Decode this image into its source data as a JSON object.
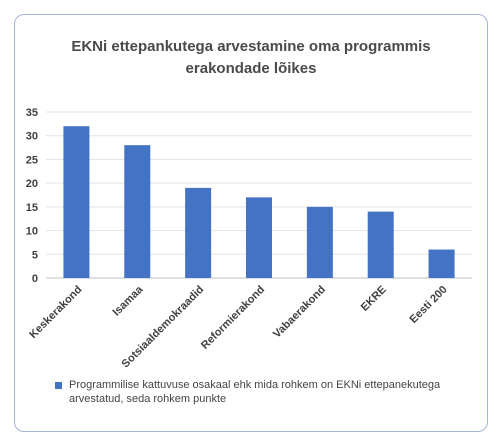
{
  "chart_data": {
    "type": "bar",
    "title_lines": [
      "EKNi ettepankutega arvestamine oma programmis",
      "erakondade lõikes"
    ],
    "categories": [
      "Keskerakond",
      "Isamaa",
      "Sotsiaaldemokraadid",
      "Reformierakond",
      "Vabaerakond",
      "EKRE",
      "Eesti 200"
    ],
    "series": [
      {
        "name": "Programmilise kattuvuse osakaal ehk mida rohkem on EKNi ettepanekutega arvestatud, seda rohkem punkte",
        "values": [
          32,
          28,
          19,
          17,
          15,
          14,
          6
        ],
        "color": "#4472c4"
      }
    ],
    "ylim": [
      0,
      35
    ],
    "yticks": [
      "0",
      "5",
      "10",
      "15",
      "20",
      "25",
      "30",
      "35"
    ],
    "grid": true,
    "legend_position": "bottom"
  }
}
